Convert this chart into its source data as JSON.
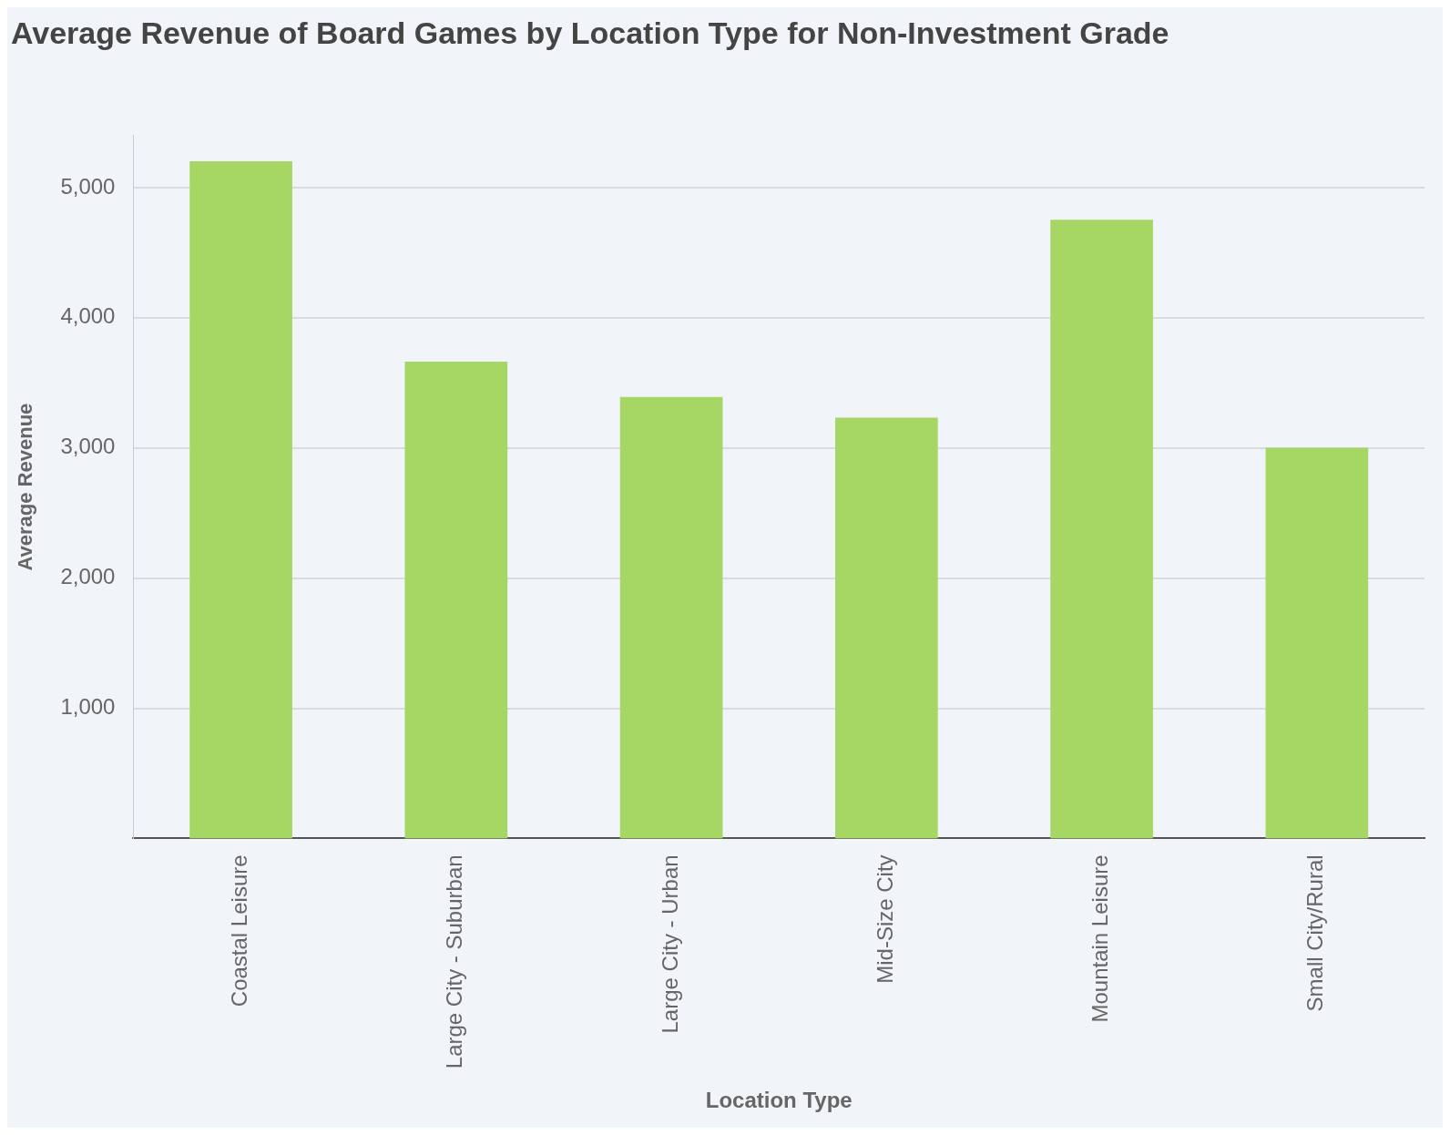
{
  "chart_data": {
    "type": "bar",
    "title": "Average Revenue of Board Games by Location Type for Non-Investment Grade",
    "xlabel": "Location Type",
    "ylabel": "Average Revenue",
    "categories": [
      "Coastal Leisure",
      "Large City - Suburban",
      "Large City - Urban",
      "Mid-Size City",
      "Mountain Leisure",
      "Small City/Rural"
    ],
    "values": [
      5200,
      3660,
      3390,
      3230,
      4750,
      3000
    ],
    "color": "#a6d663",
    "ylim": [
      0,
      5400
    ],
    "yticks": [
      {
        "value": 1000,
        "label": "1,000"
      },
      {
        "value": 2000,
        "label": "2,000"
      },
      {
        "value": 3000,
        "label": "3,000"
      },
      {
        "value": 4000,
        "label": "4,000"
      },
      {
        "value": 5000,
        "label": "5,000"
      }
    ],
    "grid": "y",
    "legend": false
  }
}
